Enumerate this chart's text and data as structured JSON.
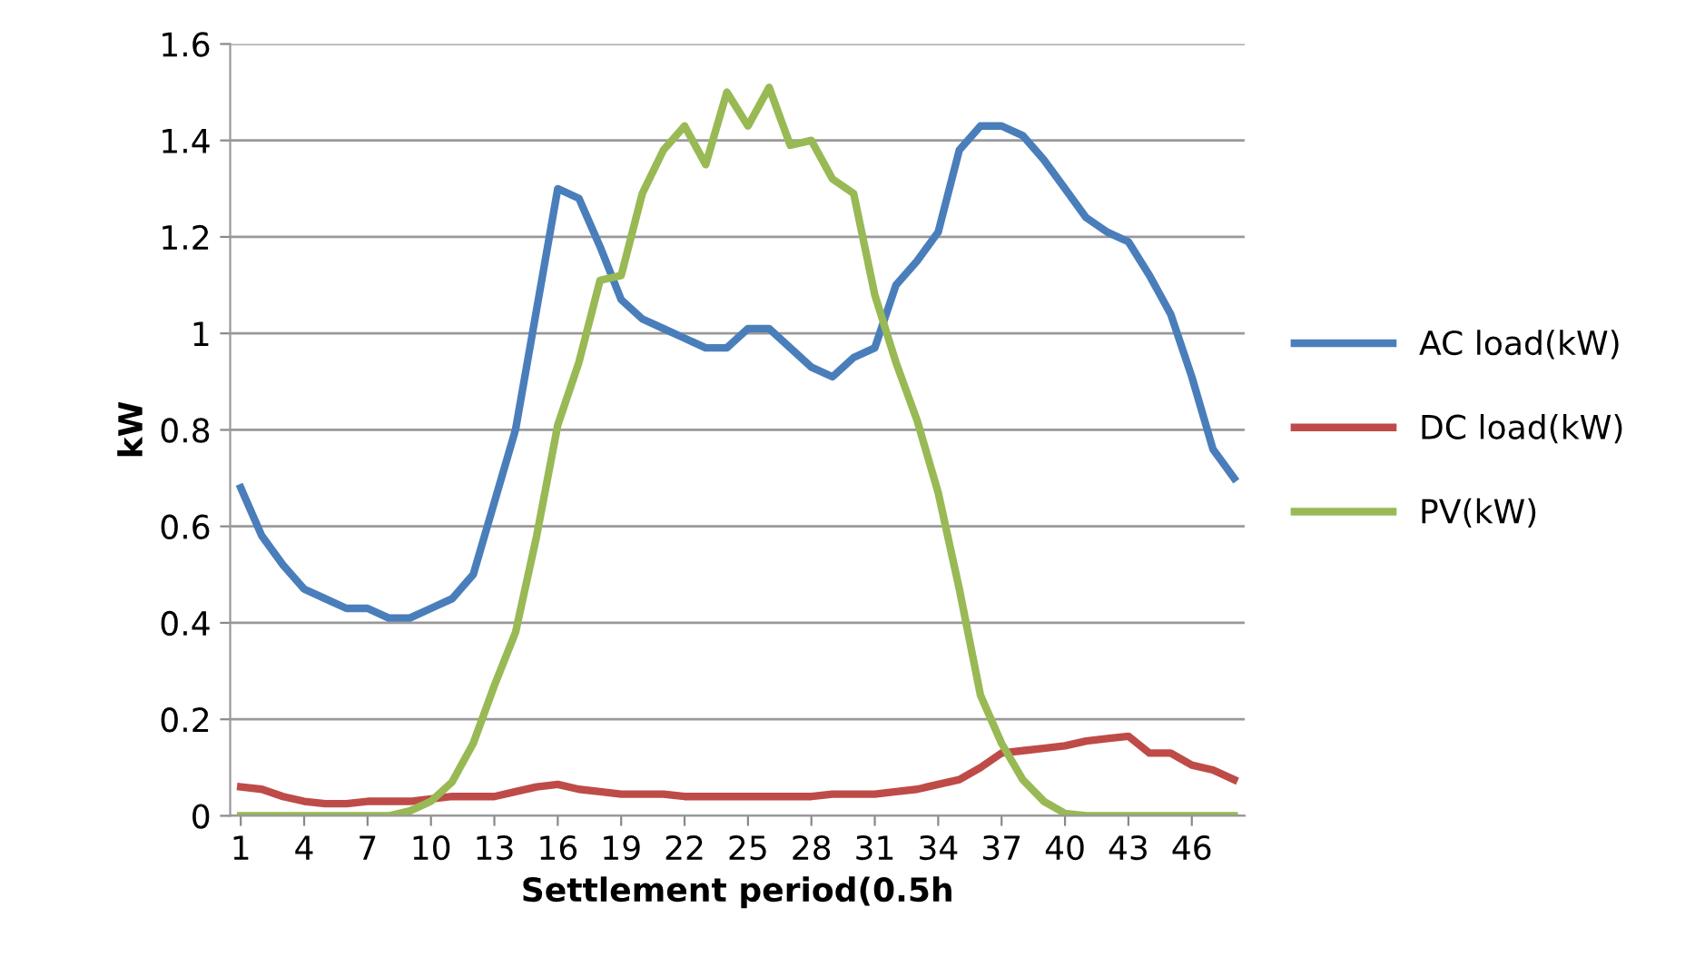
{
  "chart_data": {
    "type": "line",
    "xlabel": "Settlement period(0.5h",
    "ylabel": "kW",
    "categories": [
      "1",
      null,
      null,
      "4",
      null,
      null,
      "7",
      null,
      null,
      "10",
      null,
      null,
      "13",
      null,
      null,
      "16",
      null,
      null,
      "19",
      null,
      null,
      "22",
      null,
      null,
      "25",
      null,
      null,
      "28",
      null,
      null,
      "31",
      null,
      null,
      "34",
      null,
      null,
      "37",
      null,
      null,
      "40",
      null,
      null,
      "43",
      null,
      null,
      "46",
      null,
      null
    ],
    "ylim": [
      0,
      1.6
    ],
    "yticks": [
      0,
      0.2,
      0.4,
      0.6,
      0.8,
      1,
      1.2,
      1.4,
      1.6
    ],
    "grid": "y",
    "legend": "right",
    "marker": "none",
    "series": [
      {
        "name": "AC load(kW)",
        "color": "#4a7ebb",
        "values": [
          0.68,
          0.58,
          0.52,
          0.47,
          0.45,
          0.43,
          0.43,
          0.41,
          0.41,
          0.43,
          0.45,
          0.5,
          0.65,
          0.8,
          1.05,
          1.3,
          1.28,
          1.18,
          1.07,
          1.03,
          1.01,
          0.99,
          0.97,
          0.97,
          1.01,
          1.01,
          0.97,
          0.93,
          0.91,
          0.95,
          0.97,
          1.1,
          1.15,
          1.21,
          1.38,
          1.43,
          1.43,
          1.41,
          1.36,
          1.3,
          1.24,
          1.21,
          1.19,
          1.12,
          1.04,
          0.91,
          0.76,
          0.7
        ]
      },
      {
        "name": "DC load(kW)",
        "color": "#be4b48",
        "values": [
          0.06,
          0.055,
          0.04,
          0.03,
          0.025,
          0.025,
          0.03,
          0.03,
          0.03,
          0.035,
          0.04,
          0.04,
          0.04,
          0.05,
          0.06,
          0.065,
          0.055,
          0.05,
          0.045,
          0.045,
          0.045,
          0.04,
          0.04,
          0.04,
          0.04,
          0.04,
          0.04,
          0.04,
          0.045,
          0.045,
          0.045,
          0.05,
          0.055,
          0.065,
          0.075,
          0.1,
          0.13,
          0.135,
          0.14,
          0.145,
          0.155,
          0.16,
          0.165,
          0.13,
          0.13,
          0.105,
          0.095,
          0.075
        ]
      },
      {
        "name": "PV(kW)",
        "color": "#98b954",
        "values": [
          0,
          0,
          0,
          0,
          0,
          0,
          0,
          0,
          0.01,
          0.03,
          0.07,
          0.15,
          0.27,
          0.38,
          0.58,
          0.81,
          0.94,
          1.11,
          1.12,
          1.29,
          1.38,
          1.43,
          1.35,
          1.5,
          1.43,
          1.51,
          1.39,
          1.4,
          1.32,
          1.29,
          1.08,
          0.94,
          0.82,
          0.67,
          0.47,
          0.25,
          0.15,
          0.075,
          0.03,
          0.005,
          0,
          0,
          0,
          0,
          0,
          0,
          0,
          0
        ]
      }
    ]
  }
}
